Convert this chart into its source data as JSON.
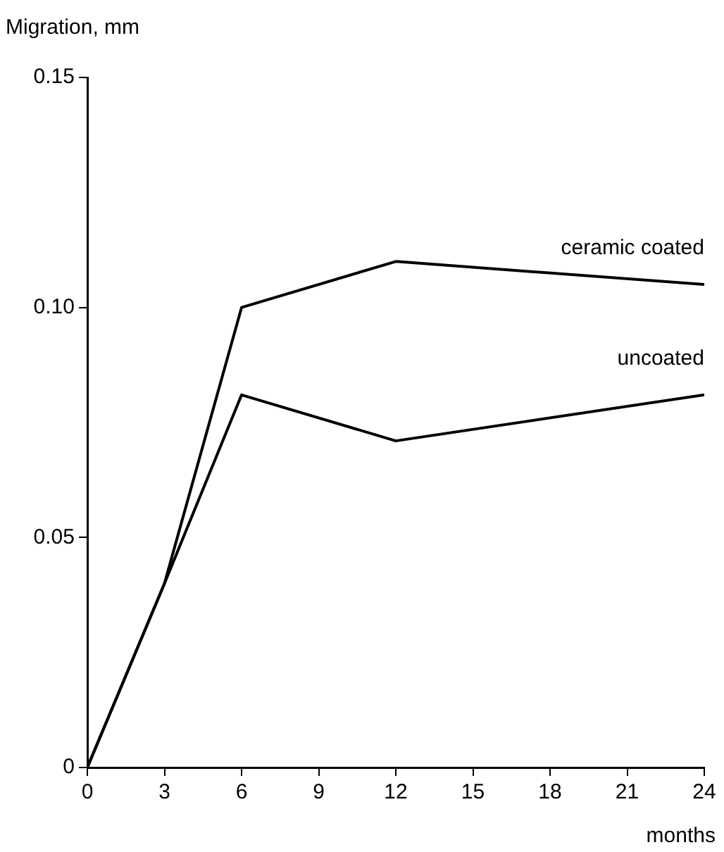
{
  "chart_data": {
    "type": "line",
    "ylabel": "Migration, mm",
    "xlabel": "months",
    "x": [
      0,
      3,
      6,
      12,
      24
    ],
    "series": [
      {
        "name": "ceramic coated",
        "color": "#000000",
        "values": [
          0,
          0.04,
          0.1,
          0.11,
          0.105
        ]
      },
      {
        "name": "uncoated",
        "color": "#000000",
        "values": [
          0,
          0.04,
          0.081,
          0.071,
          0.081
        ]
      }
    ],
    "xlim": [
      0,
      24
    ],
    "xticks": [
      0,
      3,
      6,
      9,
      12,
      15,
      18,
      21,
      24
    ],
    "ylim": [
      0,
      0.15
    ],
    "yticks": [
      0,
      {
        "value": 0.05,
        "label": "0.05"
      },
      {
        "value": 0.1,
        "label": "0.10"
      },
      {
        "value": 0.15,
        "label": "0.15"
      }
    ],
    "grid": false,
    "legend": false,
    "marker": "none",
    "line_style": "solid"
  }
}
